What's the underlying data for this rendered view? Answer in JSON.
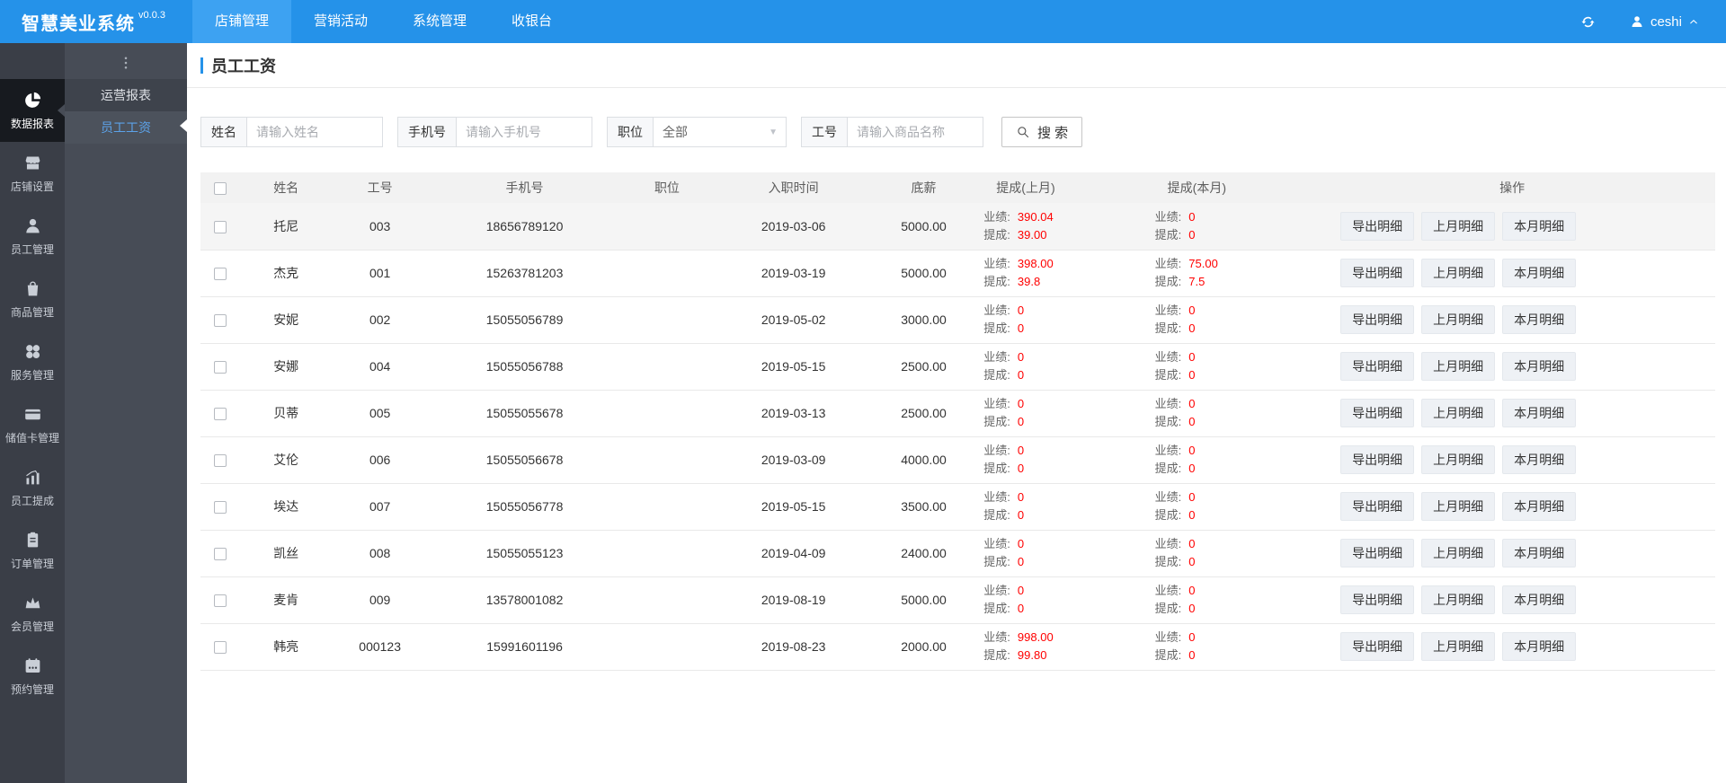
{
  "app": {
    "title": "智慧美业系统",
    "version": "v0.0.3"
  },
  "header": {
    "tabs": [
      {
        "label": "店铺管理",
        "active": true
      },
      {
        "label": "营销活动",
        "active": false
      },
      {
        "label": "系统管理",
        "active": false
      },
      {
        "label": "收银台",
        "active": false
      }
    ],
    "refresh_icon": "refresh-icon",
    "user": {
      "icon": "user-icon",
      "name": "ceshi",
      "caret_icon": "caret-up-icon"
    }
  },
  "sidebar": {
    "items": [
      {
        "label": "数据报表",
        "icon": "pie-chart-icon",
        "active": true
      },
      {
        "label": "店铺设置",
        "icon": "store-icon",
        "active": false
      },
      {
        "label": "员工管理",
        "icon": "person-icon",
        "active": false
      },
      {
        "label": "商品管理",
        "icon": "bag-icon",
        "active": false
      },
      {
        "label": "服务管理",
        "icon": "clover-icon",
        "active": false
      },
      {
        "label": "储值卡管理",
        "icon": "card-icon",
        "active": false
      },
      {
        "label": "员工提成",
        "icon": "bar-chart-icon",
        "active": false
      },
      {
        "label": "订单管理",
        "icon": "clipboard-icon",
        "active": false
      },
      {
        "label": "会员管理",
        "icon": "crown-icon",
        "active": false
      },
      {
        "label": "预约管理",
        "icon": "calendar-icon",
        "active": false
      }
    ]
  },
  "submenu": {
    "collapse_icon": "more-dots-icon",
    "items": [
      {
        "label": "运营报表",
        "active": false
      },
      {
        "label": "员工工资",
        "active": true
      }
    ]
  },
  "page": {
    "title": "员工工资"
  },
  "filters": {
    "name": {
      "label": "姓名",
      "placeholder": "请输入姓名",
      "value": ""
    },
    "phone": {
      "label": "手机号",
      "placeholder": "请输入手机号",
      "value": ""
    },
    "position": {
      "label": "职位",
      "value": "全部",
      "arrow_icon": "dropdown-arrow-icon"
    },
    "emp_no": {
      "label": "工号",
      "placeholder": "请输入商品名称",
      "value": ""
    },
    "search": {
      "label": "搜 索",
      "icon": "search-icon"
    }
  },
  "table": {
    "columns": [
      "姓名",
      "工号",
      "手机号",
      "职位",
      "入职时间",
      "底薪",
      "提成(上月)",
      "提成(本月)",
      "操作"
    ],
    "perf_label": "业绩:",
    "comm_label": "提成:",
    "actions": [
      "导出明细",
      "上月明细",
      "本月明细"
    ],
    "rows": [
      {
        "name": "托尼",
        "emp_no": "003",
        "phone": "18656789120",
        "position": "",
        "hire_date": "2019-03-06",
        "base_salary": "5000.00",
        "last_perf": "390.04",
        "last_comm": "39.00",
        "cur_perf": "0",
        "cur_comm": "0",
        "hover": true
      },
      {
        "name": "杰克",
        "emp_no": "001",
        "phone": "15263781203",
        "position": "",
        "hire_date": "2019-03-19",
        "base_salary": "5000.00",
        "last_perf": "398.00",
        "last_comm": "39.8",
        "cur_perf": "75.00",
        "cur_comm": "7.5",
        "hover": false
      },
      {
        "name": "安妮",
        "emp_no": "002",
        "phone": "15055056789",
        "position": "",
        "hire_date": "2019-05-02",
        "base_salary": "3000.00",
        "last_perf": "0",
        "last_comm": "0",
        "cur_perf": "0",
        "cur_comm": "0",
        "hover": false
      },
      {
        "name": "安娜",
        "emp_no": "004",
        "phone": "15055056788",
        "position": "",
        "hire_date": "2019-05-15",
        "base_salary": "2500.00",
        "last_perf": "0",
        "last_comm": "0",
        "cur_perf": "0",
        "cur_comm": "0",
        "hover": false
      },
      {
        "name": "贝蒂",
        "emp_no": "005",
        "phone": "15055055678",
        "position": "",
        "hire_date": "2019-03-13",
        "base_salary": "2500.00",
        "last_perf": "0",
        "last_comm": "0",
        "cur_perf": "0",
        "cur_comm": "0",
        "hover": false
      },
      {
        "name": "艾伦",
        "emp_no": "006",
        "phone": "15055056678",
        "position": "",
        "hire_date": "2019-03-09",
        "base_salary": "4000.00",
        "last_perf": "0",
        "last_comm": "0",
        "cur_perf": "0",
        "cur_comm": "0",
        "hover": false
      },
      {
        "name": "埃达",
        "emp_no": "007",
        "phone": "15055056778",
        "position": "",
        "hire_date": "2019-05-15",
        "base_salary": "3500.00",
        "last_perf": "0",
        "last_comm": "0",
        "cur_perf": "0",
        "cur_comm": "0",
        "hover": false
      },
      {
        "name": "凯丝",
        "emp_no": "008",
        "phone": "15055055123",
        "position": "",
        "hire_date": "2019-04-09",
        "base_salary": "2400.00",
        "last_perf": "0",
        "last_comm": "0",
        "cur_perf": "0",
        "cur_comm": "0",
        "hover": false
      },
      {
        "name": "麦肯",
        "emp_no": "009",
        "phone": "13578001082",
        "position": "",
        "hire_date": "2019-08-19",
        "base_salary": "5000.00",
        "last_perf": "0",
        "last_comm": "0",
        "cur_perf": "0",
        "cur_comm": "0",
        "hover": false
      },
      {
        "name": "韩亮",
        "emp_no": "000123",
        "phone": "15991601196",
        "position": "",
        "hire_date": "2019-08-23",
        "base_salary": "2000.00",
        "last_perf": "998.00",
        "last_comm": "99.80",
        "cur_perf": "0",
        "cur_comm": "0",
        "hover": false
      }
    ]
  },
  "colors": {
    "header_blue": "#2592e9",
    "active_tab_blue": "#3da2f2",
    "sidebar_dark": "#3a3e47",
    "active_icon_dark": "#171a1f",
    "submenu_gray": "#474c56",
    "submenu_active_text": "#5ca2e8",
    "accent_blue": "#2592e9",
    "value_red": "#ff0000",
    "table_header_bg": "#f2f2f2"
  }
}
